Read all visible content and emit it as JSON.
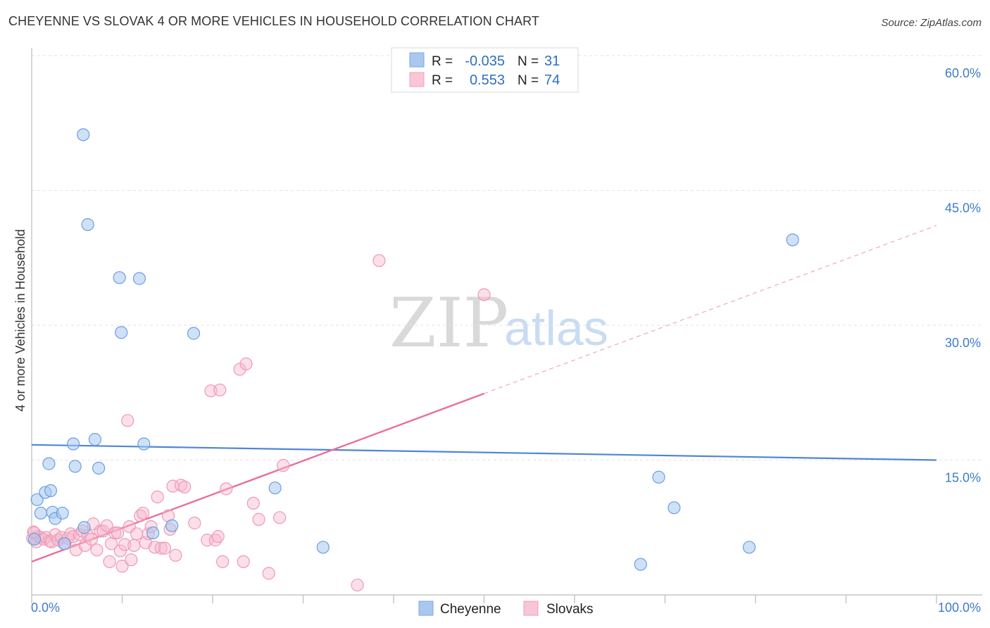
{
  "title": "CHEYENNE VS SLOVAK 4 OR MORE VEHICLES IN HOUSEHOLD CORRELATION CHART",
  "source": "Source: ZipAtlas.com",
  "watermark": {
    "zip": "ZIP",
    "atlas": "atlas"
  },
  "legend_top": {
    "rows": [
      {
        "r_label": "R =",
        "r_value": "-0.035",
        "n_label": "N =",
        "n_value": "31",
        "color": "#a8c8f0"
      },
      {
        "r_label": "R =",
        "r_value": "0.553",
        "n_label": "N =",
        "n_value": "74",
        "color": "#f8b8cc"
      }
    ]
  },
  "legend_bottom": [
    {
      "label": "Cheyenne",
      "color": "#a8c8f0"
    },
    {
      "label": "Slovaks",
      "color": "#f8b8cc"
    }
  ],
  "chart_data": {
    "type": "scatter",
    "xlabel": "",
    "ylabel": "4 or more Vehicles in Household",
    "xlim": [
      0,
      100
    ],
    "ylim": [
      0,
      60
    ],
    "x_tick_labels": [
      "0.0%",
      "100.0%"
    ],
    "y_ticks": [
      {
        "value": 15,
        "label": "15.0%"
      },
      {
        "value": 30,
        "label": "30.0%"
      },
      {
        "value": 45,
        "label": "45.0%"
      },
      {
        "value": 60,
        "label": "60.0%"
      }
    ],
    "grid": true,
    "legend": "top-center",
    "colors": {
      "cheyenne": "#4f86d6",
      "cheyenne_fill": "#a8c8f0",
      "slovaks": "#e8709a",
      "slovaks_fill": "#f8b8cc"
    },
    "series": [
      {
        "name": "Cheyenne",
        "points": [
          [
            0.3,
            6.2
          ],
          [
            0.6,
            10.6
          ],
          [
            1.0,
            9.1
          ],
          [
            1.5,
            11.4
          ],
          [
            1.9,
            14.6
          ],
          [
            2.1,
            11.6
          ],
          [
            2.3,
            9.2
          ],
          [
            2.6,
            8.5
          ],
          [
            3.4,
            9.1
          ],
          [
            3.6,
            5.7
          ],
          [
            4.6,
            16.8
          ],
          [
            4.8,
            14.3
          ],
          [
            5.7,
            51.2
          ],
          [
            5.8,
            7.5
          ],
          [
            6.2,
            41.2
          ],
          [
            7.0,
            17.3
          ],
          [
            7.4,
            14.1
          ],
          [
            9.7,
            35.3
          ],
          [
            9.9,
            29.2
          ],
          [
            11.9,
            35.2
          ],
          [
            12.4,
            16.8
          ],
          [
            13.4,
            6.9
          ],
          [
            15.5,
            7.7
          ],
          [
            17.9,
            29.1
          ],
          [
            26.9,
            11.9
          ],
          [
            32.2,
            5.3
          ],
          [
            67.3,
            3.4
          ],
          [
            69.3,
            13.1
          ],
          [
            71.0,
            9.7
          ],
          [
            79.3,
            5.3
          ],
          [
            84.1,
            39.5
          ]
        ],
        "trend": {
          "x0": 0,
          "y0": 16.7,
          "x1": 100,
          "y1": 15.0
        }
      },
      {
        "name": "Slovaks",
        "points": [
          [
            0.1,
            6.3
          ],
          [
            0.3,
            6.9
          ],
          [
            0.5,
            5.9
          ],
          [
            0.7,
            6.5
          ],
          [
            1.0,
            6.4
          ],
          [
            1.3,
            6.2
          ],
          [
            1.6,
            6.4
          ],
          [
            2.0,
            6.0
          ],
          [
            2.2,
            5.9
          ],
          [
            2.6,
            6.7
          ],
          [
            2.9,
            6.1
          ],
          [
            3.3,
            6.4
          ],
          [
            3.7,
            5.7
          ],
          [
            4.0,
            6.3
          ],
          [
            4.3,
            6.8
          ],
          [
            4.6,
            6.5
          ],
          [
            4.9,
            5.0
          ],
          [
            5.3,
            6.7
          ],
          [
            5.6,
            7.1
          ],
          [
            5.9,
            5.5
          ],
          [
            6.2,
            6.6
          ],
          [
            6.6,
            6.2
          ],
          [
            6.8,
            7.9
          ],
          [
            7.2,
            5.0
          ],
          [
            7.6,
            7.1
          ],
          [
            7.9,
            7.1
          ],
          [
            8.3,
            7.7
          ],
          [
            8.6,
            3.7
          ],
          [
            8.8,
            5.7
          ],
          [
            9.2,
            6.9
          ],
          [
            9.5,
            6.9
          ],
          [
            9.8,
            4.9
          ],
          [
            10.0,
            3.2
          ],
          [
            10.3,
            5.6
          ],
          [
            10.6,
            19.4
          ],
          [
            10.8,
            7.6
          ],
          [
            11.0,
            3.9
          ],
          [
            11.3,
            5.5
          ],
          [
            11.6,
            6.8
          ],
          [
            12.0,
            8.8
          ],
          [
            12.3,
            9.1
          ],
          [
            12.6,
            5.8
          ],
          [
            12.9,
            6.8
          ],
          [
            13.2,
            7.6
          ],
          [
            13.6,
            5.3
          ],
          [
            13.9,
            10.9
          ],
          [
            14.3,
            5.2
          ],
          [
            14.7,
            5.2
          ],
          [
            15.1,
            8.8
          ],
          [
            15.3,
            7.3
          ],
          [
            15.6,
            12.1
          ],
          [
            15.9,
            4.4
          ],
          [
            16.5,
            12.2
          ],
          [
            16.9,
            12.0
          ],
          [
            18.0,
            8.0
          ],
          [
            19.4,
            6.1
          ],
          [
            19.8,
            22.7
          ],
          [
            20.3,
            6.1
          ],
          [
            20.8,
            22.8
          ],
          [
            20.6,
            6.5
          ],
          [
            21.1,
            3.7
          ],
          [
            21.5,
            11.8
          ],
          [
            23.0,
            25.1
          ],
          [
            23.4,
            3.7
          ],
          [
            23.7,
            25.7
          ],
          [
            24.5,
            10.2
          ],
          [
            25.1,
            8.4
          ],
          [
            26.2,
            2.4
          ],
          [
            27.4,
            8.6
          ],
          [
            27.8,
            14.4
          ],
          [
            36.0,
            1.1
          ],
          [
            38.4,
            37.2
          ],
          [
            50.0,
            33.4
          ],
          [
            0.2,
            7.0
          ]
        ],
        "trend": {
          "x0": 0,
          "y0": 3.7,
          "x1": 50,
          "y1": 22.4,
          "dashed_to_x": 100,
          "dashed_to_y": 41.1
        }
      }
    ]
  }
}
